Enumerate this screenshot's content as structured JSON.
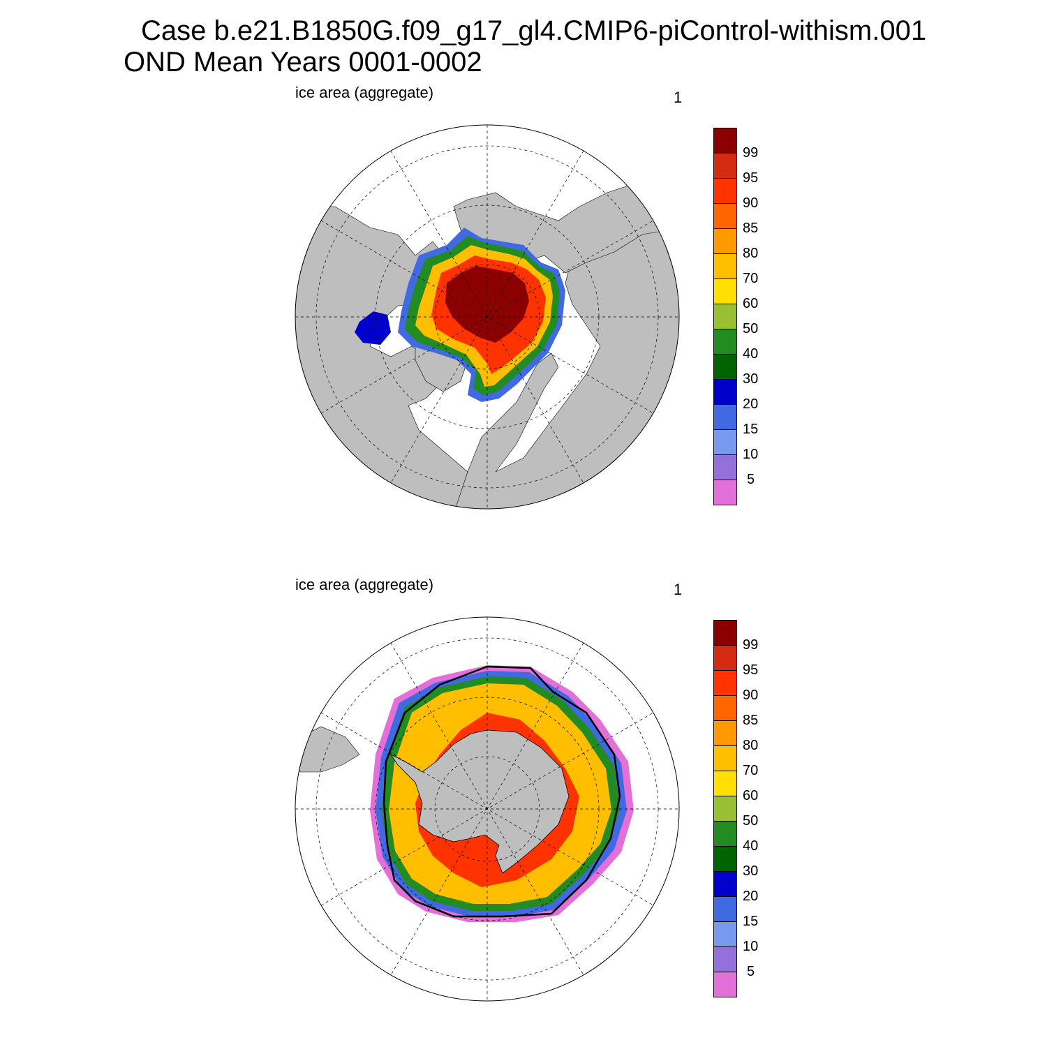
{
  "title": {
    "line1": "Case b.e21.B1850G.f09_g17_gl4.CMIP6-piControl-withism.001",
    "line2": "OND Mean   Years 0001-0002"
  },
  "panels": [
    {
      "id": "north",
      "label": "ice area  (aggregate)",
      "number": "1"
    },
    {
      "id": "south",
      "label": "ice area  (aggregate)",
      "number": "1"
    }
  ],
  "colorbar": {
    "labels": [
      "99",
      "95",
      "90",
      "85",
      "80",
      "70",
      "60",
      "50",
      "40",
      "30",
      "20",
      "15",
      "10",
      "5"
    ],
    "colors": [
      "#8b0000",
      "#d42a14",
      "#ff3300",
      "#ff6600",
      "#ff9900",
      "#ffbf00",
      "#ffe000",
      "#99bf33",
      "#228b22",
      "#006400",
      "#0000cd",
      "#4169e1",
      "#7799ee",
      "#9370db",
      "#e36fd8"
    ]
  },
  "colors": {
    "land": "#bebebe",
    "ocean": "#ffffff"
  }
}
